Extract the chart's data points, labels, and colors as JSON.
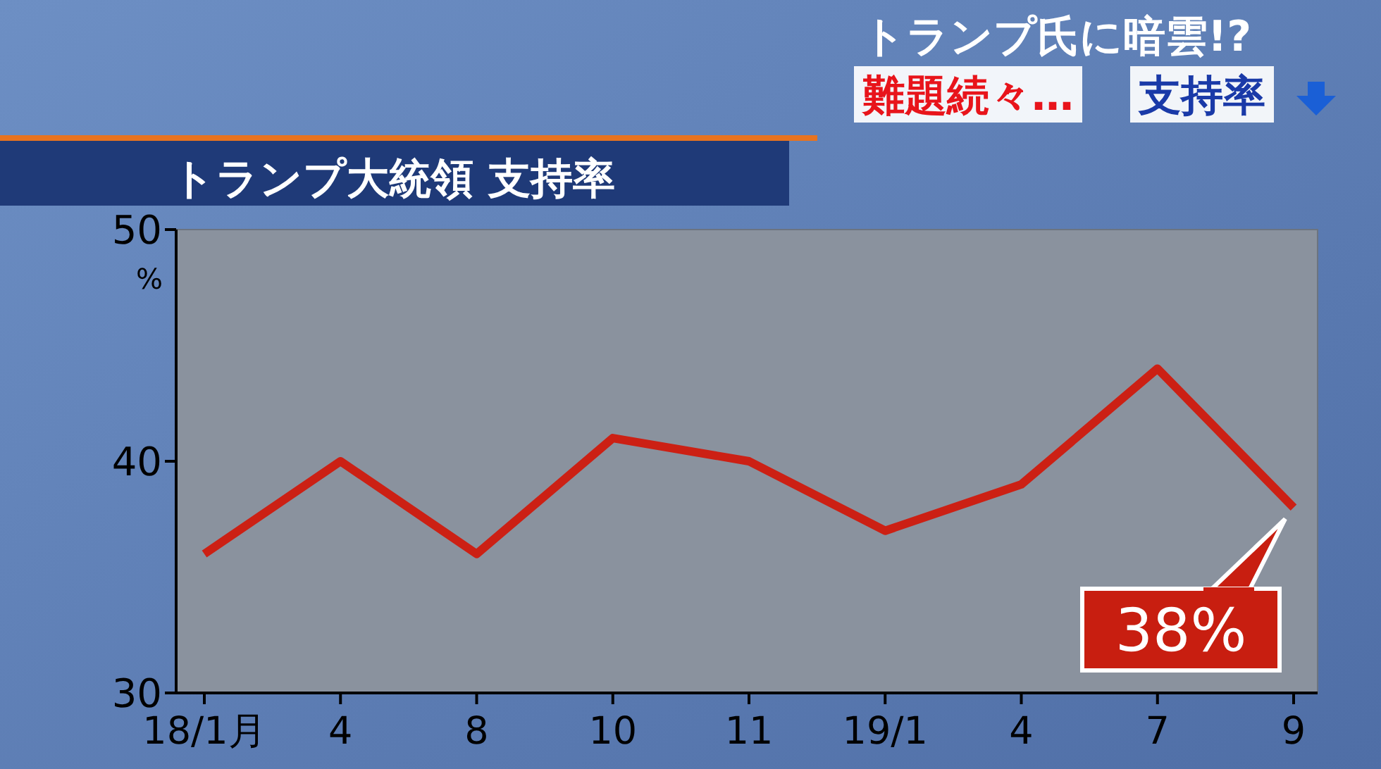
{
  "chart_data": {
    "type": "line",
    "title": "トランプ大統領 支持率",
    "ylabel": "%",
    "annotations": [
      "トランプ氏に暗雲!?",
      "難題続々…",
      "支持率",
      {
        "text": "38%",
        "x": "9",
        "y": 38
      }
    ],
    "categories": [
      "18/1月",
      "4",
      "8",
      "10",
      "11",
      "19/1",
      "4",
      "7",
      "9"
    ],
    "series": [
      {
        "color": "#cc2014",
        "values": [
          36,
          40,
          36,
          41,
          40,
          37,
          39,
          44,
          38
        ]
      }
    ],
    "ylim": [
      30,
      50
    ],
    "yticks": [
      30,
      40,
      50
    ],
    "grid": false,
    "marker": "none",
    "line_style": "solid"
  }
}
